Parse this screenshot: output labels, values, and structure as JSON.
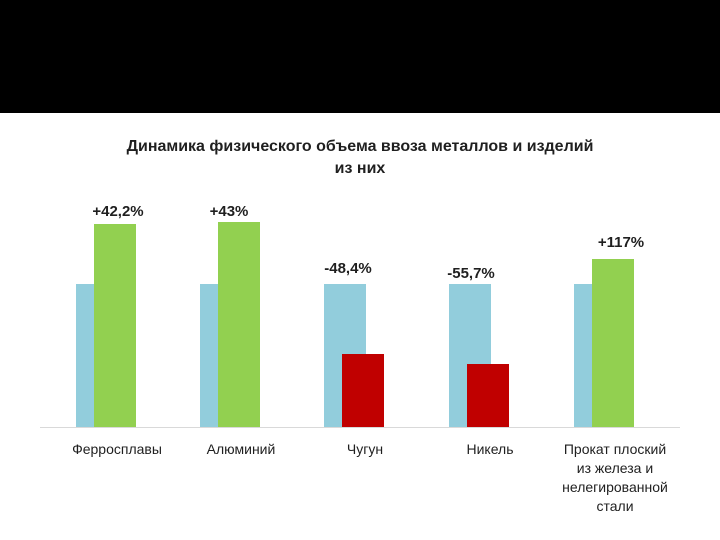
{
  "chart_data": {
    "type": "bar",
    "title": "Динамика физического объема ввоза металлов и изделий из них",
    "title_lines": [
      "Динамика физического объема ввоза металлов и изделий",
      "из них"
    ],
    "categories": [
      "Ферросплавы",
      "Алюминий",
      "Чугун",
      "Никель",
      "Прокат плоский из железа и нелегированной стали"
    ],
    "category_label_lines": [
      [
        "Ферросплавы"
      ],
      [
        "Алюминий"
      ],
      [
        "Чугун"
      ],
      [
        "Никель"
      ],
      [
        "Прокат плоский",
        "из железа и",
        "нелегированной",
        "стали"
      ]
    ],
    "series": [
      {
        "values": [
          100,
          100,
          100,
          100,
          100
        ]
      },
      {
        "values": [
          142.2,
          143,
          51.6,
          44.3,
          217
        ]
      }
    ],
    "data_labels": [
      "+42,2%",
      "+43%",
      "-48,4%",
      "-55,7%",
      "+117%"
    ],
    "axis_scale": "non-linear",
    "grid": false,
    "legend": "none",
    "colors": {
      "base": "#92cddc",
      "increase": "#92d050",
      "decrease": "#c00000",
      "axis": "#d9d9d9",
      "band": "#000000"
    }
  }
}
